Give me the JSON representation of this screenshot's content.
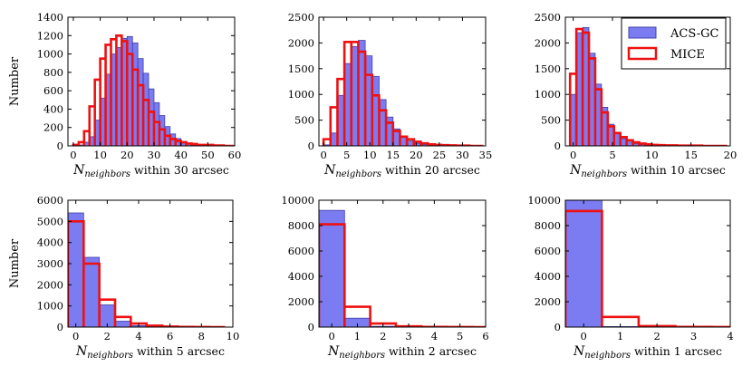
{
  "colors": {
    "acs_fill": "#7b7bf2",
    "acs_edge": "#4040a8",
    "mice_line": "#ee1111",
    "axis": "#000000"
  },
  "legend": {
    "entries": [
      "ACS-GC",
      "MICE"
    ]
  },
  "chart_data": [
    {
      "type": "bar",
      "title": "",
      "xlabel": {
        "symbol": "N",
        "subscript": "neighbors",
        "suffix": " within 30 arcsec"
      },
      "ylabel": "Number",
      "xlim": [
        -2,
        60
      ],
      "ylim": [
        0,
        1400
      ],
      "xticks": [
        0,
        10,
        20,
        30,
        40,
        50,
        60
      ],
      "yticks": [
        0,
        200,
        400,
        600,
        800,
        1000,
        1200,
        1400
      ],
      "bin_width": 2,
      "bin_starts": [
        0,
        2,
        4,
        6,
        8,
        10,
        12,
        14,
        16,
        18,
        20,
        22,
        24,
        26,
        28,
        30,
        32,
        34,
        36,
        38,
        40,
        42,
        44,
        46,
        48,
        50,
        52,
        54,
        56,
        58
      ],
      "series": [
        {
          "name": "ACS-GC",
          "values": [
            0,
            10,
            40,
            100,
            280,
            520,
            780,
            1000,
            1070,
            1170,
            1190,
            1120,
            950,
            790,
            620,
            470,
            330,
            210,
            130,
            80,
            45,
            20,
            10,
            5,
            5,
            0,
            0,
            0,
            0,
            0
          ]
        },
        {
          "name": "MICE",
          "values": [
            10,
            40,
            160,
            430,
            720,
            950,
            1100,
            1160,
            1200,
            1140,
            1000,
            830,
            660,
            500,
            370,
            260,
            180,
            110,
            75,
            55,
            40,
            25,
            20,
            10,
            10,
            10,
            5,
            5,
            0,
            0
          ]
        }
      ]
    },
    {
      "type": "bar",
      "title": "",
      "xlabel": {
        "symbol": "N",
        "subscript": "neighbors",
        "suffix": " within 20 arcsec"
      },
      "ylabel": "",
      "xlim": [
        -1,
        35
      ],
      "ylim": [
        0,
        2500
      ],
      "xticks": [
        0,
        5,
        10,
        15,
        20,
        25,
        30,
        35
      ],
      "yticks": [
        0,
        500,
        1000,
        1500,
        2000,
        2500
      ],
      "bin_width": 1.5,
      "bin_starts": [
        0,
        1.5,
        3,
        4.5,
        6,
        7.5,
        9,
        10.5,
        12,
        13.5,
        15,
        16.5,
        18,
        19.5,
        21,
        22.5,
        24,
        25.5,
        27,
        28.5,
        30,
        31.5,
        33
      ],
      "series": [
        {
          "name": "ACS-GC",
          "values": [
            20,
            250,
            980,
            1600,
            1930,
            2050,
            1750,
            1350,
            900,
            560,
            330,
            180,
            95,
            50,
            25,
            15,
            5,
            0,
            0,
            0,
            0,
            0,
            0
          ]
        },
        {
          "name": "MICE",
          "values": [
            130,
            750,
            1300,
            2020,
            2020,
            1830,
            1380,
            980,
            690,
            450,
            290,
            180,
            130,
            80,
            50,
            30,
            20,
            15,
            10,
            5,
            5,
            0,
            0
          ]
        }
      ]
    },
    {
      "type": "bar",
      "title": "",
      "xlabel": {
        "symbol": "N",
        "subscript": "neighbors",
        "suffix": " within 10 arcsec"
      },
      "ylabel": "",
      "xlim": [
        -1,
        20
      ],
      "ylim": [
        0,
        2500
      ],
      "xticks": [
        0,
        5,
        10,
        15,
        20
      ],
      "yticks": [
        0,
        500,
        1000,
        1500,
        2000,
        2500
      ],
      "bin_width": 0.8,
      "bin_starts": [
        -0.4,
        0.4,
        1.2,
        2.0,
        2.8,
        3.6,
        4.4,
        5.2,
        6.0,
        6.8,
        7.6,
        8.4,
        9.2,
        10.0,
        10.8,
        11.6,
        12.4,
        13.2,
        14.0,
        14.8,
        15.6,
        16.4,
        17.2,
        18.0,
        18.8
      ],
      "series": [
        {
          "name": "ACS-GC",
          "values": [
            1000,
            2200,
            2300,
            1800,
            1200,
            750,
            420,
            250,
            140,
            75,
            40,
            25,
            15,
            10,
            5,
            0,
            0,
            0,
            0,
            0,
            0,
            0,
            0,
            0,
            0
          ]
        },
        {
          "name": "MICE",
          "values": [
            1400,
            2270,
            2200,
            1700,
            1100,
            650,
            380,
            250,
            170,
            110,
            70,
            45,
            30,
            20,
            15,
            10,
            10,
            5,
            5,
            5,
            5,
            0,
            0,
            0,
            0
          ]
        }
      ]
    },
    {
      "type": "bar",
      "title": "",
      "xlabel": {
        "symbol": "N",
        "subscript": "neighbors",
        "suffix": " within 5 arcsec"
      },
      "ylabel": "Number",
      "xlim": [
        -0.5,
        10
      ],
      "ylim": [
        0,
        6000
      ],
      "xticks": [
        0,
        2,
        4,
        6,
        8,
        10
      ],
      "yticks": [
        0,
        1000,
        2000,
        3000,
        4000,
        5000,
        6000
      ],
      "bin_width": 1,
      "bin_starts": [
        -0.5,
        0.5,
        1.5,
        2.5,
        3.5,
        4.5,
        5.5,
        6.5,
        7.5,
        8.5
      ],
      "series": [
        {
          "name": "ACS-GC",
          "values": [
            5400,
            3300,
            1050,
            280,
            70,
            15,
            5,
            0,
            0,
            0
          ]
        },
        {
          "name": "MICE",
          "values": [
            5000,
            3000,
            1300,
            480,
            170,
            70,
            25,
            10,
            5,
            0
          ]
        }
      ]
    },
    {
      "type": "bar",
      "title": "",
      "xlabel": {
        "symbol": "N",
        "subscript": "neighbors",
        "suffix": " within 2 arcsec"
      },
      "ylabel": "",
      "xlim": [
        -0.5,
        6
      ],
      "ylim": [
        0,
        10000
      ],
      "xticks": [
        0,
        1,
        2,
        3,
        4,
        5,
        6
      ],
      "yticks": [
        0,
        2000,
        4000,
        6000,
        8000,
        10000
      ],
      "bin_width": 1,
      "bin_starts": [
        -0.5,
        0.5,
        1.5,
        2.5,
        3.5,
        4.5,
        5.5
      ],
      "series": [
        {
          "name": "ACS-GC",
          "values": [
            9200,
            700,
            60,
            5,
            0,
            0,
            0
          ]
        },
        {
          "name": "MICE",
          "values": [
            8100,
            1600,
            280,
            60,
            15,
            5,
            0
          ]
        }
      ]
    },
    {
      "type": "bar",
      "title": "",
      "xlabel": {
        "symbol": "N",
        "subscript": "neighbors",
        "suffix": " within 1 arcsec"
      },
      "ylabel": "",
      "xlim": [
        -0.5,
        4
      ],
      "ylim": [
        0,
        10000
      ],
      "xticks": [
        0,
        1,
        2,
        3,
        4
      ],
      "yticks": [
        0,
        2000,
        4000,
        6000,
        8000,
        10000
      ],
      "bin_width": 1,
      "bin_starts": [
        -0.5,
        0.5,
        1.5,
        2.5,
        3.5
      ],
      "series": [
        {
          "name": "ACS-GC",
          "values": [
            10000,
            40,
            0,
            0,
            0
          ]
        },
        {
          "name": "MICE",
          "values": [
            9150,
            800,
            80,
            15,
            5
          ]
        }
      ]
    }
  ]
}
